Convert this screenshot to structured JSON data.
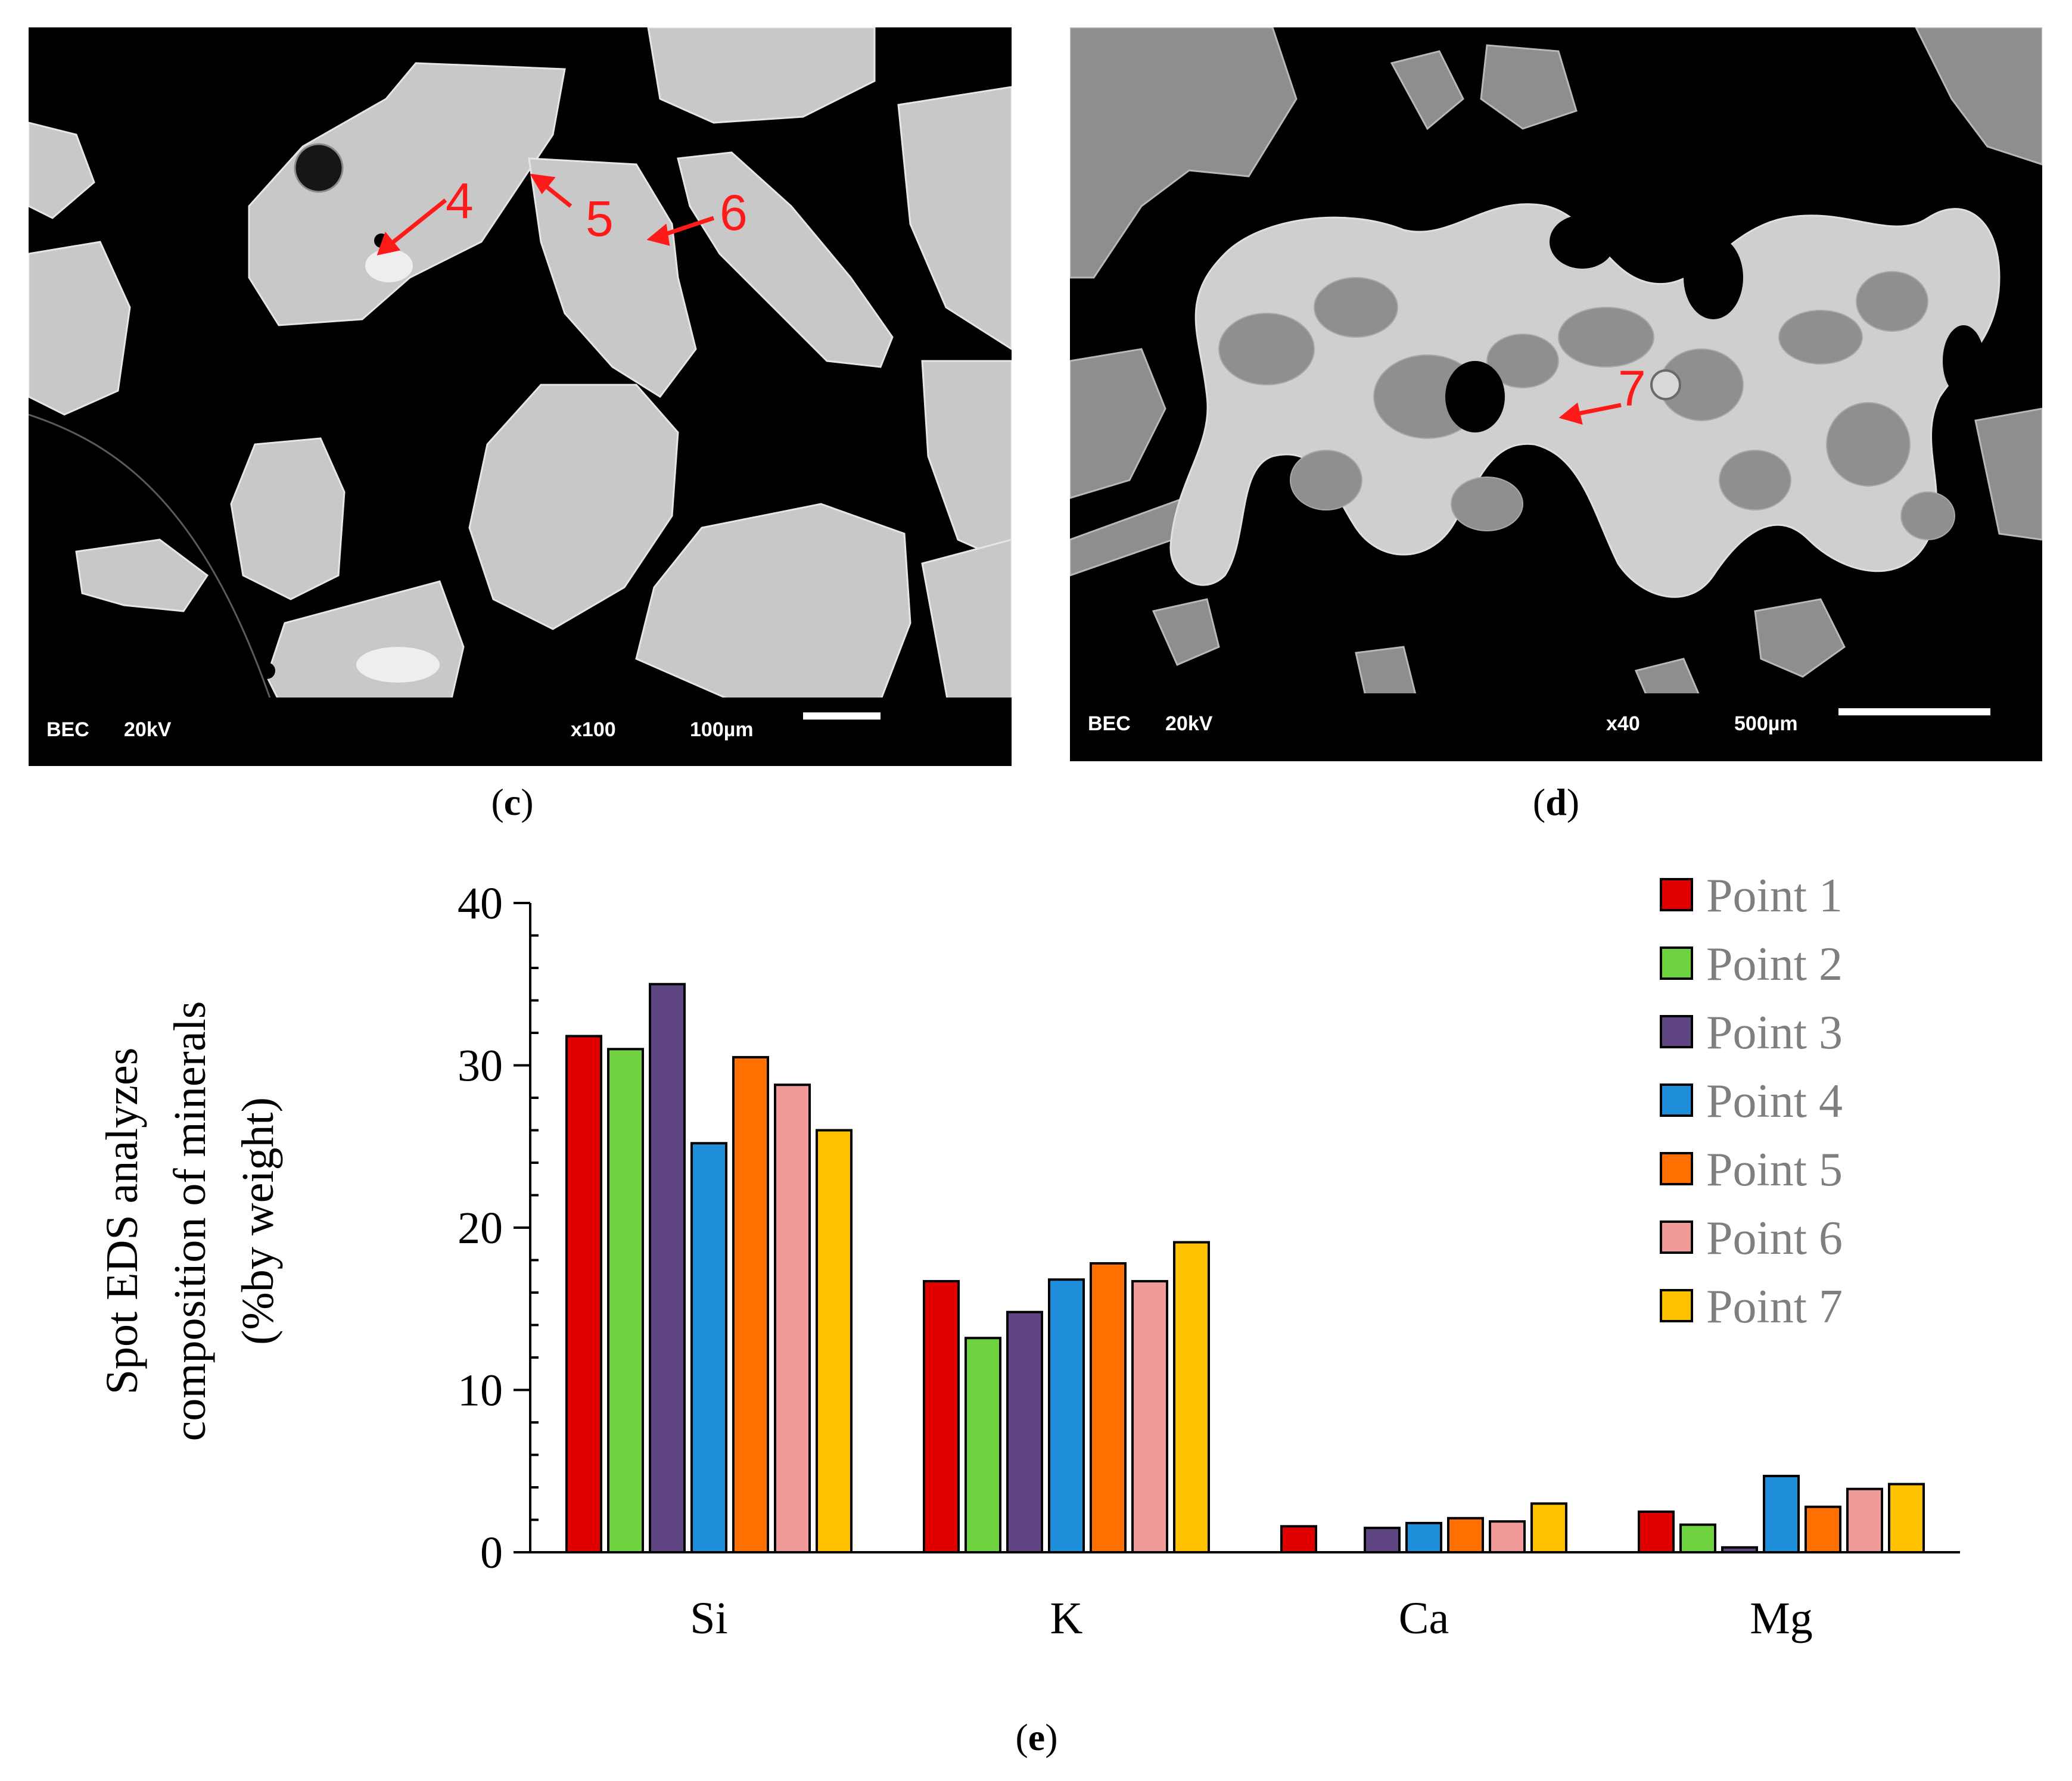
{
  "panel_c": {
    "caption_open": "(",
    "caption_letter": "c",
    "caption_close": ")",
    "footer_mode": "BEC",
    "footer_kv": "20kV",
    "footer_mag": "x100",
    "footer_scale": "100µm",
    "markers": [
      "4",
      "5",
      "6"
    ]
  },
  "panel_d": {
    "caption_open": "(",
    "caption_letter": "d",
    "caption_close": ")",
    "footer_mode": "BEC",
    "footer_kv": "20kV",
    "footer_mag": "x40",
    "footer_scale": "500µm",
    "markers": [
      "7"
    ]
  },
  "panel_e": {
    "caption_open": "(",
    "caption_letter": "e",
    "caption_close": ")"
  },
  "chart_data": {
    "type": "bar",
    "title": "",
    "ylabel_lines": [
      "Spot EDS analyzes",
      "composition of minerals",
      "(%by weight)"
    ],
    "xlabel": "",
    "categories": [
      "Si",
      "K",
      "Ca",
      "Mg"
    ],
    "ylim": [
      0,
      40
    ],
    "yticks": [
      0,
      10,
      20,
      30,
      40
    ],
    "legend_position": "top-right",
    "series": [
      {
        "name": "Point 1",
        "color": "#e00000",
        "values": [
          31.8,
          16.7,
          1.6,
          2.5
        ]
      },
      {
        "name": "Point 2",
        "color": "#6ed33f",
        "values": [
          31.0,
          13.2,
          0,
          1.7
        ]
      },
      {
        "name": "Point 3",
        "color": "#5f4682",
        "values": [
          35.0,
          14.8,
          1.5,
          0.3
        ]
      },
      {
        "name": "Point 4",
        "color": "#1f8fdc",
        "values": [
          25.2,
          16.8,
          1.8,
          4.7
        ]
      },
      {
        "name": "Point 5",
        "color": "#ff7000",
        "values": [
          30.5,
          17.8,
          2.1,
          2.8
        ]
      },
      {
        "name": "Point 6",
        "color": "#f09a9a",
        "values": [
          28.8,
          16.7,
          1.9,
          3.9
        ]
      },
      {
        "name": "Point 7",
        "color": "#ffc000",
        "values": [
          26.0,
          19.1,
          3.0,
          4.2
        ]
      }
    ],
    "legend_text_color": "#7f7f7f"
  }
}
